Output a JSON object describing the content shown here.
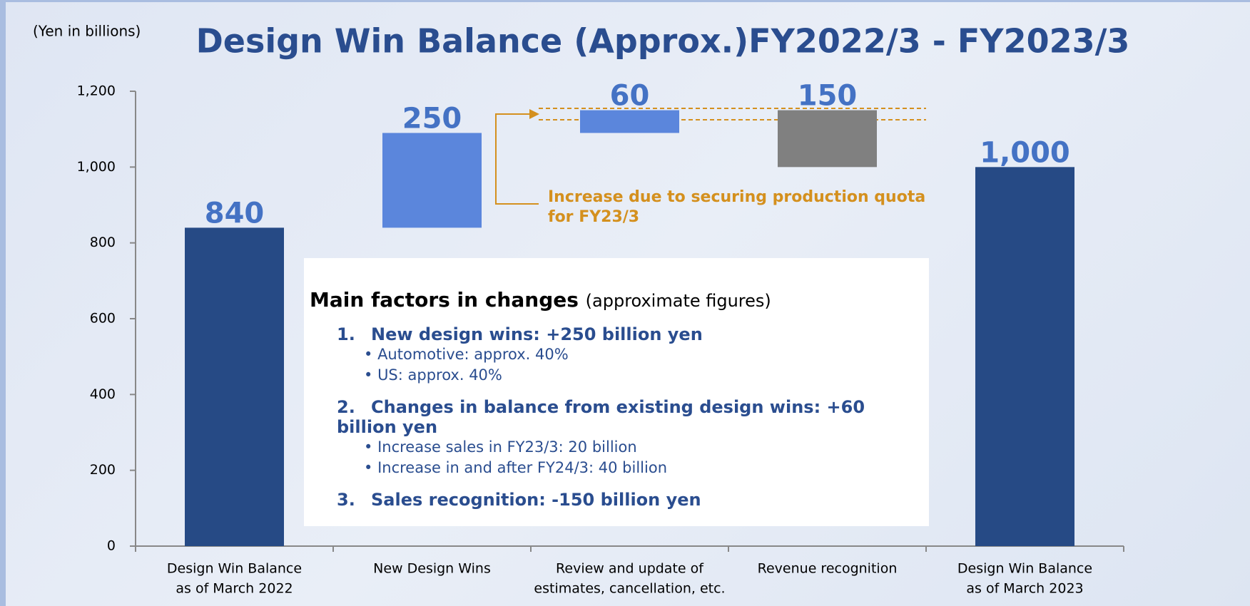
{
  "chart_data": {
    "type": "waterfall",
    "title": "Design Win Balance (Approx.)FY2022/3 - FY2023/3",
    "y_axis_label": "(Yen in billions)",
    "categories": [
      [
        "Design Win Balance",
        "as of March 2022"
      ],
      [
        "New Design Wins"
      ],
      [
        "Review and update of",
        "estimates, cancellation, etc."
      ],
      [
        "Revenue recognition"
      ],
      [
        "Design Win Balance",
        "as of March 2023"
      ]
    ],
    "values": [
      840,
      250,
      60,
      150,
      1000
    ],
    "value_labels": [
      "840",
      "250",
      "60",
      "150",
      "1,000"
    ],
    "measure": [
      "total",
      "increase",
      "increase",
      "decrease",
      "total"
    ],
    "colors": [
      "#264a85",
      "#5b86dc",
      "#5b86dc",
      "#808080",
      "#264a85"
    ],
    "ylim": [
      0,
      1200
    ],
    "yticks": [
      0,
      200,
      400,
      600,
      800,
      {
        "value": 1000,
        "label": "1,000"
      },
      {
        "value": 1200,
        "label": "1,200"
      }
    ],
    "annotation": [
      "Increase due to securing production quota",
      "for FY23/3"
    ]
  },
  "notes": {
    "heading": "Main factors in changes",
    "heading_note": "(approximate figures)",
    "items": [
      {
        "number": "1.",
        "title": "New design wins: +250 billion yen",
        "bullets": [
          "Automotive: approx. 40%",
          "US: approx. 40%"
        ]
      },
      {
        "number": "2.",
        "title": "Changes in balance from existing design wins: +60 billion yen",
        "bullets": [
          "Increase sales in FY23/3: 20 billion",
          "Increase in and after FY24/3: 40 billion"
        ]
      },
      {
        "number": "3.",
        "title": "Sales recognition: -150 billion yen",
        "bullets": []
      }
    ]
  }
}
